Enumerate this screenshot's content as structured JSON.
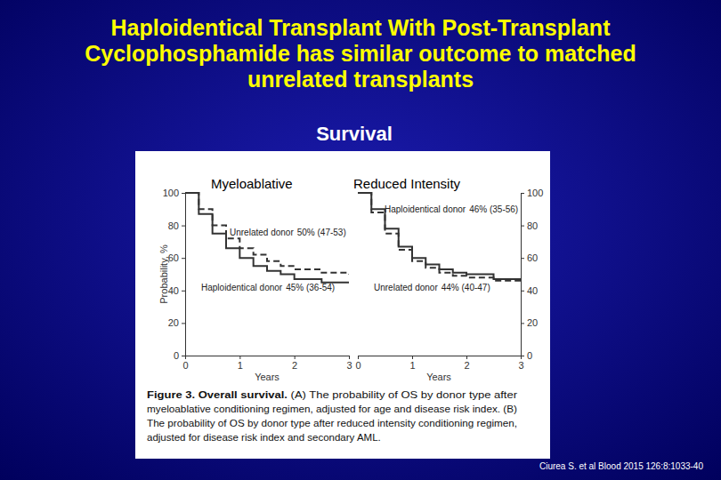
{
  "slide": {
    "title_lines": [
      "Haploidentical Transplant With Post-Transplant",
      "Cyclophosphamide has similar outcome to matched",
      "unrelated transplants"
    ],
    "subtitle": "Survival",
    "citation": "Ciurea S. et al Blood 2015 126:8:1033-40"
  },
  "figure": {
    "caption_heading": "Figure 3. Overall survival.",
    "caption_lines": [
      " (A) The probability of OS by donor type after",
      "myeloablative conditioning regimen, adjusted for age and disease risk index. (B)",
      "The probability of OS by donor type after reduced intensity conditioning regimen,",
      "adjusted for disease risk index and secondary AML."
    ]
  },
  "chart_data": [
    {
      "type": "line",
      "title": "Myeloablative",
      "x_label": "Years",
      "y_label": "Probability, %",
      "xlim": [
        0,
        3
      ],
      "ylim": [
        0,
        100
      ],
      "xticks": [
        0,
        1,
        2,
        3
      ],
      "yticks": [
        0,
        20,
        40,
        60,
        80,
        100
      ],
      "x": [
        0,
        0.25,
        0.5,
        0.75,
        1,
        1.25,
        1.5,
        1.75,
        2,
        2.5,
        3
      ],
      "series": [
        {
          "name": "Unrelated donor",
          "estimate_label": "50% (47-53)",
          "color": "#333333",
          "line_style": "dashed",
          "values": [
            100,
            90,
            80,
            72,
            66,
            62,
            58,
            55,
            53,
            51,
            50
          ]
        },
        {
          "name": "Haploidentical donor",
          "estimate_label": "45% (36-54)",
          "color": "#333333",
          "line_style": "solid",
          "values": [
            100,
            87,
            75,
            66,
            60,
            55,
            52,
            50,
            47,
            45,
            45
          ]
        }
      ]
    },
    {
      "type": "line",
      "title": "Reduced Intensity",
      "x_label": "Years",
      "xlim": [
        0,
        3
      ],
      "ylim": [
        0,
        100
      ],
      "xticks": [
        0,
        1,
        2,
        3
      ],
      "yticks": [
        0,
        20,
        40,
        60,
        80,
        100
      ],
      "x": [
        0,
        0.25,
        0.5,
        0.75,
        1,
        1.25,
        1.5,
        1.75,
        2,
        2.5,
        3
      ],
      "series": [
        {
          "name": "Haploidentical donor",
          "estimate_label": "46% (35-56)",
          "color": "#333333",
          "line_style": "solid",
          "values": [
            100,
            90,
            78,
            67,
            60,
            56,
            53,
            51,
            50,
            47,
            46
          ]
        },
        {
          "name": "Unrelated donor",
          "estimate_label": "44% (40-47)",
          "color": "#333333",
          "line_style": "dashed",
          "values": [
            100,
            88,
            75,
            65,
            58,
            54,
            51,
            49,
            48,
            46,
            44
          ]
        }
      ]
    }
  ]
}
